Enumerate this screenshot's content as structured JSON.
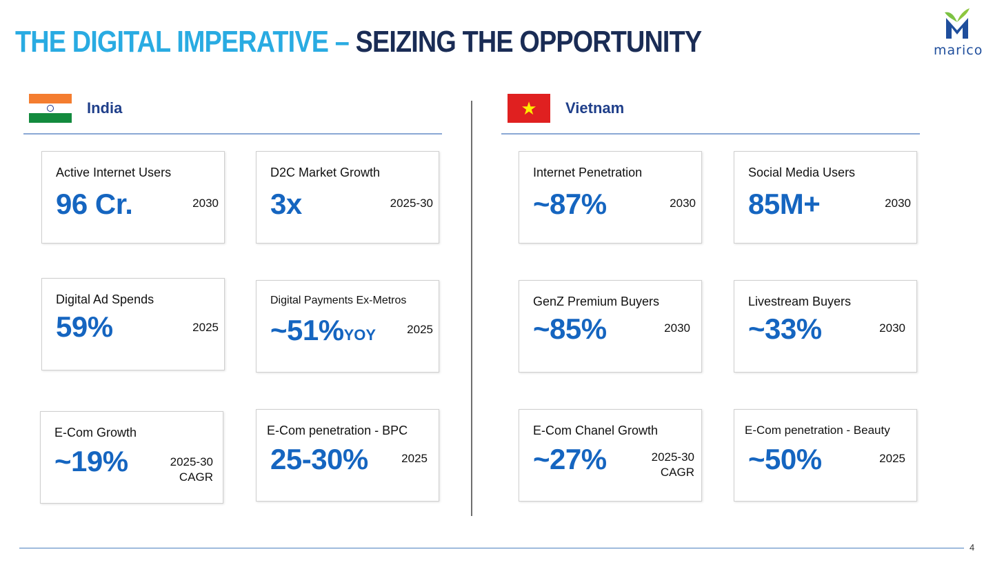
{
  "title": {
    "part1": "THE DIGITAL IMPERATIVE – ",
    "part2": "SEIZING THE OPPORTUNITY"
  },
  "logo": {
    "text": "marico"
  },
  "colors": {
    "title_light": "#29abe2",
    "title_dark": "#1a2c55",
    "value_blue": "#1565c0",
    "country_blue": "#1f3f8a"
  },
  "india": {
    "name": "India",
    "flag_icon": "india-flag-icon",
    "cards": [
      {
        "label": "Active Internet Users",
        "value": "96 Cr.",
        "year": "2030"
      },
      {
        "label": "D2C Market Growth",
        "value": "3x",
        "year": "2025-30"
      },
      {
        "label": "Digital Ad Spends",
        "value": "59%",
        "year": "2025"
      },
      {
        "label": "Digital Payments Ex-Metros",
        "value": "~51%",
        "suffix": "YOY",
        "year": "2025"
      },
      {
        "label": "E-Com Growth",
        "value": "~19%",
        "year": "2025-30",
        "year2": "CAGR"
      },
      {
        "label": "E-Com penetration - BPC",
        "value": "25-30%",
        "year": "2025"
      }
    ]
  },
  "vietnam": {
    "name": "Vietnam",
    "flag_icon": "vietnam-flag-icon",
    "cards": [
      {
        "label": "Internet Penetration",
        "value": "~87%",
        "year": "2030"
      },
      {
        "label": "Social Media Users",
        "value": "85M+",
        "year": "2030"
      },
      {
        "label": "GenZ Premium Buyers",
        "value": "~85%",
        "year": "2030"
      },
      {
        "label": "Livestream Buyers",
        "value": "~33%",
        "year": "2030"
      },
      {
        "label": "E-Com Chanel Growth",
        "value": "~27%",
        "year": "2025-30",
        "year2": "CAGR"
      },
      {
        "label": "E-Com penetration - Beauty",
        "value": "~50%",
        "year": "2025"
      }
    ]
  },
  "page_number": "4"
}
